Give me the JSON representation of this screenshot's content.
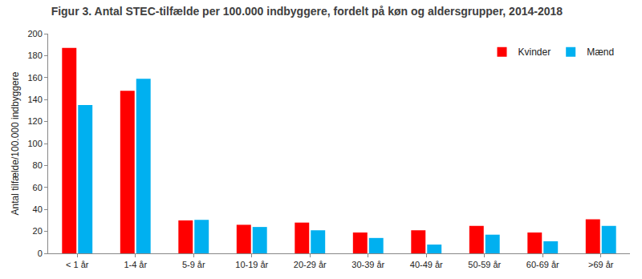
{
  "chart_data": {
    "type": "bar",
    "title": "Figur 3. Antal STEC-tilfælde per 100.000 indbyggere, fordelt på køn og aldersgrupper, 2014-2018",
    "y_label": "Antal tilfælde/100.000 indbyggere",
    "categories": [
      "< 1 år",
      "1-4 år",
      "5-9 år",
      "10-19 år",
      "20-29 år",
      "30-39 år",
      "40-49 år",
      "50-59 år",
      "60-69 år",
      ">69 år"
    ],
    "series": [
      {
        "name": "Kvinder",
        "color": "#ff0000",
        "values": [
          187,
          148,
          30,
          26,
          28,
          19,
          21,
          25,
          19,
          31
        ]
      },
      {
        "name": "Mænd",
        "color": "#00b0f0",
        "values": [
          135,
          159,
          30.5,
          24,
          21,
          14,
          8,
          17,
          11,
          25
        ]
      }
    ],
    "ylim": [
      0,
      200
    ],
    "yticks": [
      0,
      20,
      40,
      60,
      80,
      100,
      120,
      140,
      160,
      180,
      200
    ],
    "grid": false,
    "legend": "top right"
  }
}
